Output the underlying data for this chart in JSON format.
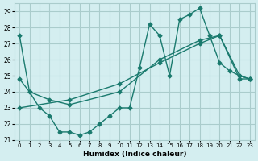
{
  "xlabel": "Humidex (Indice chaleur)",
  "ylabel": "",
  "background_color": "#d4eef0",
  "grid_color": "#aacccc",
  "line_color": "#1a7a6e",
  "xlim": [
    -0.5,
    23.5
  ],
  "ylim": [
    21,
    29.5
  ],
  "yticks": [
    21,
    22,
    23,
    24,
    25,
    26,
    27,
    28,
    29
  ],
  "xticks": [
    0,
    1,
    2,
    3,
    4,
    5,
    6,
    7,
    8,
    9,
    10,
    11,
    12,
    13,
    14,
    15,
    16,
    17,
    18,
    19,
    20,
    21,
    22,
    23
  ],
  "series": [
    {
      "x": [
        0,
        1,
        2,
        3,
        4,
        5,
        6,
        7,
        8,
        9,
        10,
        11,
        12,
        13,
        14,
        15,
        16,
        17,
        18,
        19,
        20,
        21,
        22,
        23
      ],
      "y": [
        27.5,
        24.0,
        23.0,
        22.5,
        21.5,
        21.5,
        21.3,
        21.5,
        22.0,
        22.5,
        23.0,
        23.0,
        25.5,
        28.2,
        27.5,
        25.0,
        28.5,
        28.8,
        29.2,
        27.5,
        25.8,
        25.3,
        25.0,
        24.8
      ]
    },
    {
      "x": [
        0,
        1,
        3,
        5,
        10,
        14,
        18,
        20,
        22,
        23
      ],
      "y": [
        24.8,
        24.0,
        23.5,
        23.2,
        24.0,
        26.0,
        27.2,
        27.5,
        25.0,
        24.8
      ]
    },
    {
      "x": [
        0,
        5,
        10,
        14,
        18,
        20,
        22,
        23
      ],
      "y": [
        23.0,
        23.5,
        24.5,
        25.8,
        27.0,
        27.5,
        24.8,
        24.8
      ]
    }
  ]
}
